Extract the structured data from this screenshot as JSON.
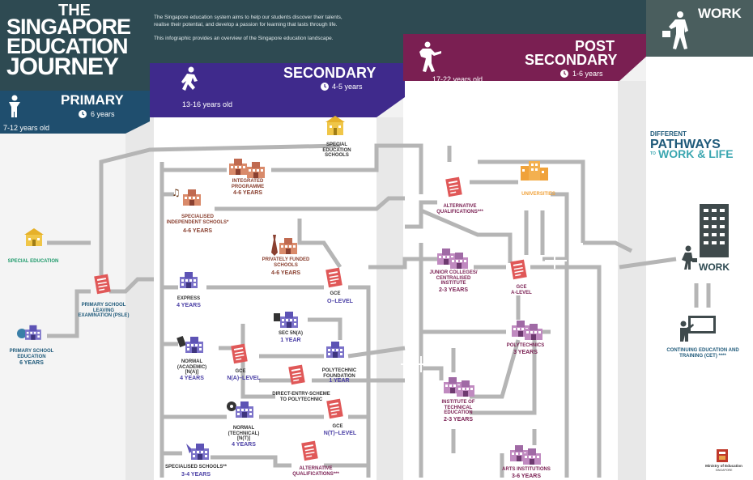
{
  "title": {
    "line1": "THE",
    "line2": "SINGAPORE",
    "line3": "EDUCATION",
    "line4": "JOURNEY"
  },
  "intro": {
    "line1": "The Singapore education system aims to help our students discover their talents,",
    "line2": "realise their potential, and develop a passion for learning that lasts through life.",
    "line3": "This infographic provides an overview of the Singapore education landscape."
  },
  "stages": {
    "primary": {
      "name": "PRIMARY",
      "duration": "6 years",
      "age": "7-12 years old"
    },
    "secondary": {
      "name": "SECONDARY",
      "duration": "4-5 years",
      "age": "13-16 years old"
    },
    "post_secondary": {
      "name1": "POST",
      "name2": "SECONDARY",
      "duration": "1-6 years",
      "age": "17-22 years old"
    },
    "work": {
      "name": "WORK"
    }
  },
  "pathways": {
    "line1": "DIFFERENT",
    "line2": "PATHWAYS",
    "to": "TO",
    "line3": "WORK & LIFE"
  },
  "nodes": {
    "special_education": "SPECIAL EDUCATION",
    "primary_school": "PRIMARY SCHOOL EDUCATION",
    "primary_years": "6 YEARS",
    "psle": "PRIMARY SCHOOL LEAVING EXAMINATION (PSLE)",
    "special_ed_schools": "SPECIAL EDUCATION SCHOOLS",
    "integrated": "INTEGRATED PROGRAMME",
    "integrated_years": "4-6 YEARS",
    "specialised_independent": "SPECIALISED INDEPENDENT SCHOOLS*",
    "specialised_independent_years": "4-6 YEARS",
    "privately_funded": "PRIVATELY FUNDED SCHOOLS",
    "privately_funded_years": "4-6 YEARS",
    "express": "EXPRESS",
    "express_years": "4 YEARS",
    "gce_o": "GCE",
    "gce_o_level": "O–LEVEL",
    "sec5": "SEC 5N(A)",
    "sec5_years": "1 YEAR",
    "normal_academic": "NORMAL (ACADEMIC) [N(A)]",
    "normal_academic_years": "4 YEARS",
    "gce_na": "GCE",
    "gce_na_level": "N(A)–LEVEL",
    "poly_foundation": "POLYTECHNIC FOUNDATION",
    "poly_foundation_years": "1 YEAR",
    "dsp": "DIRECT-ENTRY-SCHEME TO POLYTECHNIC",
    "normal_technical": "NORMAL (TECHNICAL) [N(T)]",
    "normal_technical_years": "4 YEARS",
    "gce_nt": "GCE",
    "gce_nt_level": "N(T)–LEVEL",
    "specialised_schools": "SPECIALISED SCHOOLS**",
    "specialised_schools_years": "3-4 YEARS",
    "alt_quals_bottom": "ALTERNATIVE QUALIFICATIONS***",
    "alt_quals_top": "ALTERNATIVE QUALIFICATIONS***",
    "universities": "UNIVERSITIES",
    "jc": "JUNIOR COLLEGES/ CENTRALISED INSTITUTE",
    "jc_years": "2-3 YEARS",
    "gce_a": "GCE",
    "gce_a_level": "A-LEVEL",
    "polytechnics": "POLYTECHNICS",
    "polytechnics_years": "3 YEARS",
    "ite": "INSTITUTE OF TECHNICAL EDUCATION",
    "ite_years": "2-3 YEARS",
    "arts": "ARTS INSTITUTIONS",
    "arts_years": "3-6 YEARS",
    "work": "WORK",
    "cet": "CONTINUING EDUCATION AND TRAINING (CET) ****",
    "moe": "Ministry of Education",
    "moe_country": "SINGAPORE"
  },
  "colors": {
    "primary_stage": "#1f4e6e",
    "secondary_stage": "#3f2a8c",
    "post_secondary_stage": "#7a1f52",
    "work_stage": "#4a5e5e",
    "title_bg": "#2e4a52",
    "path": "#b5b5b5",
    "exam": "#e05858",
    "school": "#7b72c9",
    "uni": "#f0a23a",
    "post_school": "#b36ab0"
  }
}
